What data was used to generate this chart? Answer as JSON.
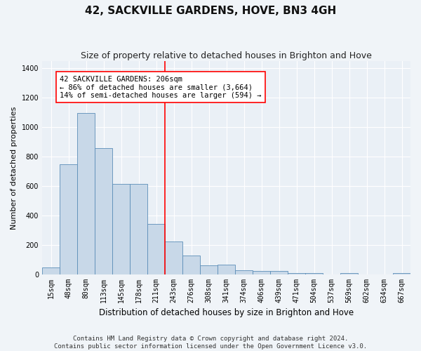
{
  "title": "42, SACKVILLE GARDENS, HOVE, BN3 4GH",
  "subtitle": "Size of property relative to detached houses in Brighton and Hove",
  "xlabel": "Distribution of detached houses by size in Brighton and Hove",
  "ylabel": "Number of detached properties",
  "categories": [
    "15sqm",
    "48sqm",
    "80sqm",
    "113sqm",
    "145sqm",
    "178sqm",
    "211sqm",
    "243sqm",
    "276sqm",
    "308sqm",
    "341sqm",
    "374sqm",
    "406sqm",
    "439sqm",
    "471sqm",
    "504sqm",
    "537sqm",
    "569sqm",
    "602sqm",
    "634sqm",
    "667sqm"
  ],
  "values": [
    50,
    750,
    1095,
    860,
    615,
    615,
    345,
    225,
    130,
    60,
    65,
    27,
    22,
    22,
    12,
    10,
    0,
    12,
    0,
    0,
    10
  ],
  "bar_color": "#c8d8e8",
  "bar_edge_color": "#5b8db8",
  "vline_bin_index": 6,
  "vline_color": "red",
  "annotation_text": "42 SACKVILLE GARDENS: 206sqm\n← 86% of detached houses are smaller (3,664)\n14% of semi-detached houses are larger (594) →",
  "annotation_box_color": "white",
  "annotation_box_edge_color": "red",
  "ylim": [
    0,
    1450
  ],
  "yticks": [
    0,
    200,
    400,
    600,
    800,
    1000,
    1200,
    1400
  ],
  "footer1": "Contains HM Land Registry data © Crown copyright and database right 2024.",
  "footer2": "Contains public sector information licensed under the Open Government Licence v3.0.",
  "bg_color": "#f0f4f8",
  "plot_bg_color": "#eaf0f6",
  "grid_color": "white",
  "title_fontsize": 11,
  "subtitle_fontsize": 9,
  "xlabel_fontsize": 8.5,
  "ylabel_fontsize": 8,
  "tick_fontsize": 7,
  "annotation_fontsize": 7.5,
  "footer_fontsize": 6.5
}
